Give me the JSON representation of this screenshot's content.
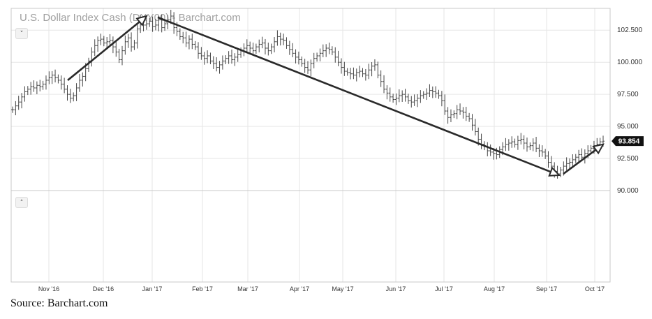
{
  "chart_data": {
    "type": "bar",
    "style": "OHLC",
    "title": "U.S. Dollar Index Cash (DXY00) - Barchart.com",
    "x_labels": [
      "Nov '16",
      "Dec '16",
      "Jan '17",
      "Feb '17",
      "Mar '17",
      "Apr '17",
      "May '17",
      "Jun '17",
      "Jul '17",
      "Aug '17",
      "Sep '17",
      "Oct '17"
    ],
    "y_ticks": [
      "102.500",
      "100.000",
      "97.500",
      "95.000",
      "92.500",
      "90.000"
    ],
    "ylim": [
      90.0,
      104.2
    ],
    "last_value": "93.854",
    "grid": true,
    "closes_approx": [
      96.3,
      96.6,
      96.9,
      97.3,
      97.7,
      97.9,
      98.1,
      98.0,
      98.2,
      98.1,
      98.3,
      98.6,
      98.8,
      99.0,
      98.8,
      98.6,
      98.3,
      97.9,
      97.5,
      97.2,
      97.4,
      98.0,
      98.6,
      98.9,
      99.5,
      100.1,
      100.8,
      101.3,
      101.7,
      101.8,
      101.5,
      101.6,
      101.7,
      101.2,
      100.8,
      100.2,
      100.9,
      101.6,
      101.9,
      101.2,
      101.5,
      102.6,
      103.2,
      102.9,
      103.0,
      103.2,
      102.8,
      102.9,
      103.3,
      102.7,
      103.0,
      103.3,
      103.6,
      102.7,
      102.4,
      102.0,
      101.9,
      101.5,
      101.8,
      101.4,
      101.2,
      100.7,
      100.5,
      100.3,
      100.5,
      100.1,
      99.9,
      99.6,
      99.8,
      100.1,
      100.3,
      100.5,
      100.2,
      100.4,
      100.6,
      100.9,
      101.1,
      101.3,
      101.1,
      100.9,
      101.2,
      101.4,
      101.5,
      101.1,
      100.9,
      101.2,
      101.6,
      102.0,
      101.8,
      101.7,
      101.3,
      101.0,
      100.7,
      100.4,
      100.2,
      99.9,
      99.6,
      99.4,
      99.9,
      100.3,
      100.5,
      100.7,
      100.9,
      101.1,
      101.0,
      100.8,
      100.4,
      100.0,
      99.6,
      99.3,
      99.2,
      99.1,
      99.0,
      99.2,
      99.3,
      99.1,
      99.0,
      99.4,
      99.7,
      99.8,
      99.0,
      98.5,
      97.9,
      97.6,
      97.3,
      97.1,
      97.2,
      97.4,
      97.5,
      97.3,
      97.0,
      96.9,
      97.0,
      97.2,
      97.4,
      97.5,
      97.6,
      97.8,
      97.7,
      97.6,
      97.4,
      97.0,
      96.2,
      95.7,
      95.9,
      96.0,
      96.3,
      96.2,
      96.1,
      95.8,
      95.6,
      95.1,
      94.6,
      94.0,
      93.6,
      93.4,
      93.1,
      93.0,
      92.9,
      92.8,
      93.2,
      93.4,
      93.6,
      93.7,
      93.8,
      93.6,
      93.9,
      94.0,
      93.7,
      93.4,
      93.5,
      93.7,
      93.3,
      93.1,
      93.0,
      92.7,
      92.2,
      91.9,
      91.5,
      91.3,
      91.6,
      91.9,
      92.1,
      92.2,
      92.4,
      92.6,
      92.8,
      92.6,
      92.9,
      93.1,
      93.3,
      93.5,
      93.6,
      93.8,
      93.85
    ],
    "arrows": [
      {
        "from": [
          "Nov '16",
          98.6
        ],
        "to": [
          "Dec '16",
          103.6
        ]
      },
      {
        "from": [
          "Jan '17",
          103.5
        ],
        "to": [
          "Sep '17",
          91.2
        ]
      },
      {
        "from": [
          "Sep '17",
          91.3
        ],
        "to": [
          "Oct '17",
          93.6
        ]
      }
    ],
    "source": "Source: Barchart.com"
  },
  "controls": {
    "collapse_up": "˅",
    "collapse_down": "˄"
  }
}
